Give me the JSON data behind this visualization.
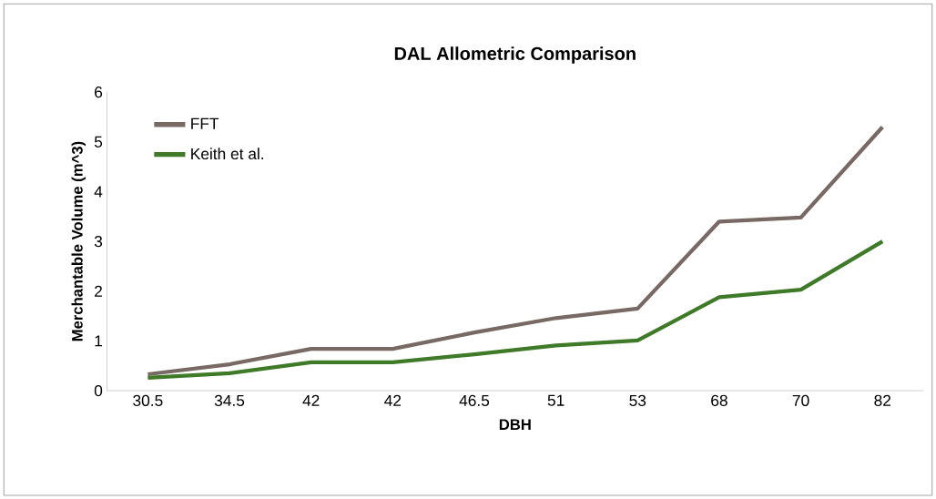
{
  "chart_data": {
    "type": "line",
    "title": "DAL Allometric Comparison",
    "xlabel": "DBH",
    "ylabel": "Merchantable Volume (m^3)",
    "categories": [
      "30.5",
      "34.5",
      "42",
      "42",
      "46.5",
      "51",
      "53",
      "68",
      "70",
      "82"
    ],
    "series": [
      {
        "name": "FFT",
        "color": "#786964",
        "values": [
          0.33,
          0.53,
          0.84,
          0.84,
          1.17,
          1.46,
          1.65,
          3.4,
          3.48,
          5.3
        ]
      },
      {
        "name": "Keith et al.",
        "color": "#3e7a28",
        "values": [
          0.26,
          0.35,
          0.57,
          0.57,
          0.73,
          0.91,
          1.01,
          1.88,
          2.03,
          3.0
        ]
      }
    ],
    "ylim": [
      0,
      6
    ],
    "yticks": [
      0,
      1,
      2,
      3,
      4,
      5,
      6
    ],
    "grid": false,
    "legend": "top left",
    "marker": "none",
    "line_style": "solid"
  }
}
